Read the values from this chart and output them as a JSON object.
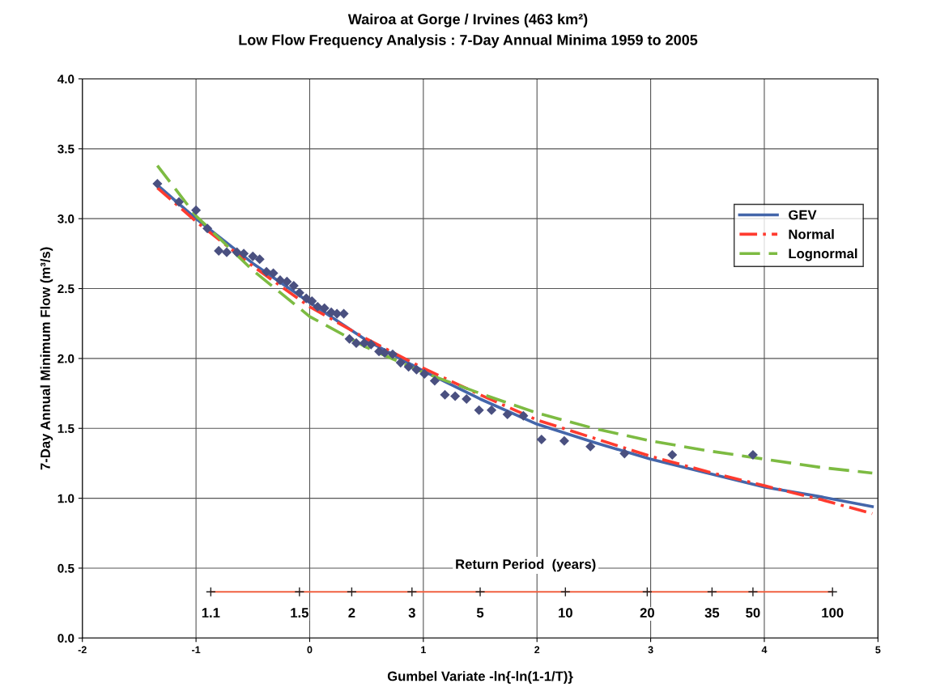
{
  "chart_data": {
    "type": "scatter",
    "title": "Wairoa at Gorge / Irvines (463 km²)",
    "subtitle": "Low Flow Frequency Analysis : 7-Day Annual Minima 1959 to 2005",
    "xlabel": "Gumbel Variate -ln{-ln(1-1/T)}",
    "ylabel": "7-Day Annual Minimum Flow (m³/s)",
    "xlim": [
      -2,
      5
    ],
    "xticks": [
      -2,
      -1,
      0,
      1,
      2,
      3,
      4,
      5
    ],
    "ylim": [
      0,
      4
    ],
    "yticks": [
      {
        "value": 0,
        "label": "0.0"
      },
      {
        "value": 0.5,
        "label": "0.5"
      },
      {
        "value": 1,
        "label": "1.0"
      },
      {
        "value": 1.5,
        "label": "1.5"
      },
      {
        "value": 2,
        "label": "2.0"
      },
      {
        "value": 2.5,
        "label": "2.5"
      },
      {
        "value": 3,
        "label": "3.0"
      },
      {
        "value": 3.5,
        "label": "3.5"
      },
      {
        "value": 4,
        "label": "4.0"
      }
    ],
    "grid": true,
    "legend": "right",
    "series": [
      {
        "marker": "diamond",
        "color": "#4a5080",
        "x": [
          -1.34,
          -1.15,
          -1.0,
          -0.9,
          -0.8,
          -0.73,
          -0.64,
          -0.58,
          -0.5,
          -0.44,
          -0.38,
          -0.32,
          -0.26,
          -0.2,
          -0.14,
          -0.09,
          -0.03,
          0.02,
          0.07,
          0.13,
          0.19,
          0.24,
          0.3,
          0.35,
          0.41,
          0.48,
          0.54,
          0.61,
          0.66,
          0.73,
          0.8,
          0.87,
          0.94,
          1.01,
          1.1,
          1.19,
          1.28,
          1.38,
          1.49,
          1.6,
          1.74,
          1.88,
          2.04,
          2.24,
          2.47,
          2.77,
          3.19,
          3.9
        ],
        "values": [
          3.25,
          3.12,
          3.06,
          2.93,
          2.77,
          2.76,
          2.76,
          2.75,
          2.73,
          2.71,
          2.62,
          2.61,
          2.56,
          2.55,
          2.52,
          2.47,
          2.43,
          2.41,
          2.37,
          2.36,
          2.33,
          2.32,
          2.32,
          2.14,
          2.11,
          2.11,
          2.1,
          2.05,
          2.04,
          2.03,
          1.97,
          1.94,
          1.92,
          1.89,
          1.84,
          1.74,
          1.73,
          1.71,
          1.63,
          1.63,
          1.6,
          1.59,
          1.42,
          1.41,
          1.37,
          1.32,
          1.31,
          1.31
        ]
      },
      {
        "type": "line",
        "name": "GEV",
        "color": "#4466aa",
        "line_style": "solid",
        "x": [
          -1.34,
          -1,
          -0.5,
          0,
          0.5,
          1,
          1.5,
          2,
          2.5,
          3,
          3.5,
          4,
          4.5,
          4.95
        ],
        "values": [
          3.24,
          3.0,
          2.68,
          2.4,
          2.13,
          1.91,
          1.71,
          1.53,
          1.4,
          1.28,
          1.18,
          1.08,
          1.01,
          0.94
        ]
      },
      {
        "type": "line",
        "name": "Normal",
        "color": "#ff3b2f",
        "line_style": "dashdot",
        "x": [
          -1.34,
          -1,
          -0.5,
          0,
          0.5,
          1,
          1.5,
          2,
          2.5,
          3,
          3.5,
          4,
          4.5,
          4.95
        ],
        "values": [
          3.22,
          2.98,
          2.66,
          2.37,
          2.14,
          1.93,
          1.74,
          1.56,
          1.43,
          1.3,
          1.19,
          1.09,
          0.99,
          0.89
        ]
      },
      {
        "type": "line",
        "name": "Lognormal",
        "color": "#7dbb42",
        "line_style": "dashed",
        "x": [
          -1.34,
          -1,
          -0.5,
          0,
          0.5,
          1,
          1.5,
          2,
          2.5,
          3,
          3.5,
          4,
          4.5,
          4.95
        ],
        "values": [
          3.38,
          3.02,
          2.63,
          2.3,
          2.08,
          1.9,
          1.75,
          1.61,
          1.5,
          1.41,
          1.34,
          1.28,
          1.22,
          1.18
        ]
      },
      {
        "type": "line",
        "marker": "cross",
        "color": "#f06040",
        "line_style": "solid",
        "x": [
          -0.87,
          -0.09,
          0.37,
          0.9,
          1.5,
          2.25,
          2.97,
          3.54,
          3.9,
          4.6
        ],
        "values": [
          0.33,
          0.33,
          0.33,
          0.33,
          0.33,
          0.33,
          0.33,
          0.33,
          0.33,
          0.33
        ]
      }
    ],
    "annotations": [
      "Return Period  (years)",
      {
        "text": "1.1",
        "x": -0.87,
        "y": 0.33
      },
      {
        "text": "1.5",
        "x": -0.09,
        "y": 0.33
      },
      {
        "text": "2",
        "x": 0.37,
        "y": 0.33
      },
      {
        "text": "3",
        "x": 0.9,
        "y": 0.33
      },
      {
        "text": "5",
        "x": 1.5,
        "y": 0.33
      },
      {
        "text": "10",
        "x": 2.25,
        "y": 0.33
      },
      {
        "text": "20",
        "x": 2.97,
        "y": 0.33
      },
      {
        "text": "35",
        "x": 3.54,
        "y": 0.33
      },
      {
        "text": "50",
        "x": 3.9,
        "y": 0.33
      },
      {
        "text": "100",
        "x": 4.6,
        "y": 0.33
      }
    ]
  }
}
